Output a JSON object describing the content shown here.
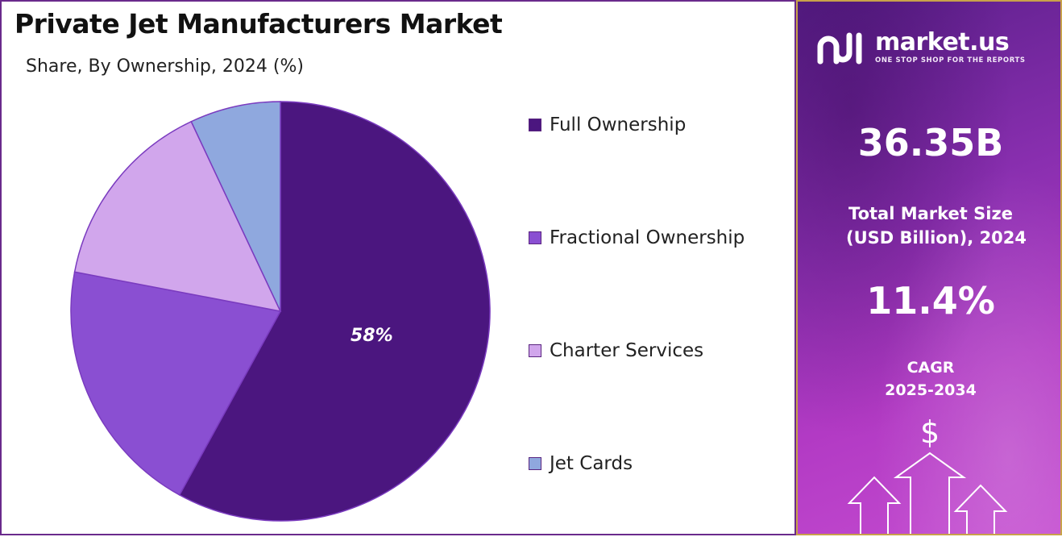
{
  "chart_data": {
    "type": "pie",
    "title": "Private Jet Manufacturers Market",
    "subtitle": "Share, By Ownership, 2024 (%)",
    "categories": [
      "Full Ownership",
      "Fractional Ownership",
      "Charter Services",
      "Jet Cards"
    ],
    "values": [
      58,
      20,
      15,
      7
    ],
    "unit": "%",
    "colors": [
      "#4b167f",
      "#8a4fd2",
      "#d1a6ec",
      "#8fa8de"
    ],
    "data_labels": [
      "58%",
      "",
      "",
      ""
    ],
    "legend_position": "right"
  },
  "panel": {
    "brand": "market.us",
    "tagline": "ONE STOP SHOP FOR THE REPORTS",
    "market_size_value": "36.35B",
    "market_size_label_line1": "Total Market Size",
    "market_size_label_line2": "(USD Billion), 2024",
    "cagr_value": "11.4%",
    "cagr_label_line1": "CAGR",
    "cagr_label_line2": "2025-2034",
    "currency_symbol": "$",
    "icons": [
      "market-us-logo-icon",
      "up-arrow-icon",
      "dollar-icon"
    ]
  }
}
